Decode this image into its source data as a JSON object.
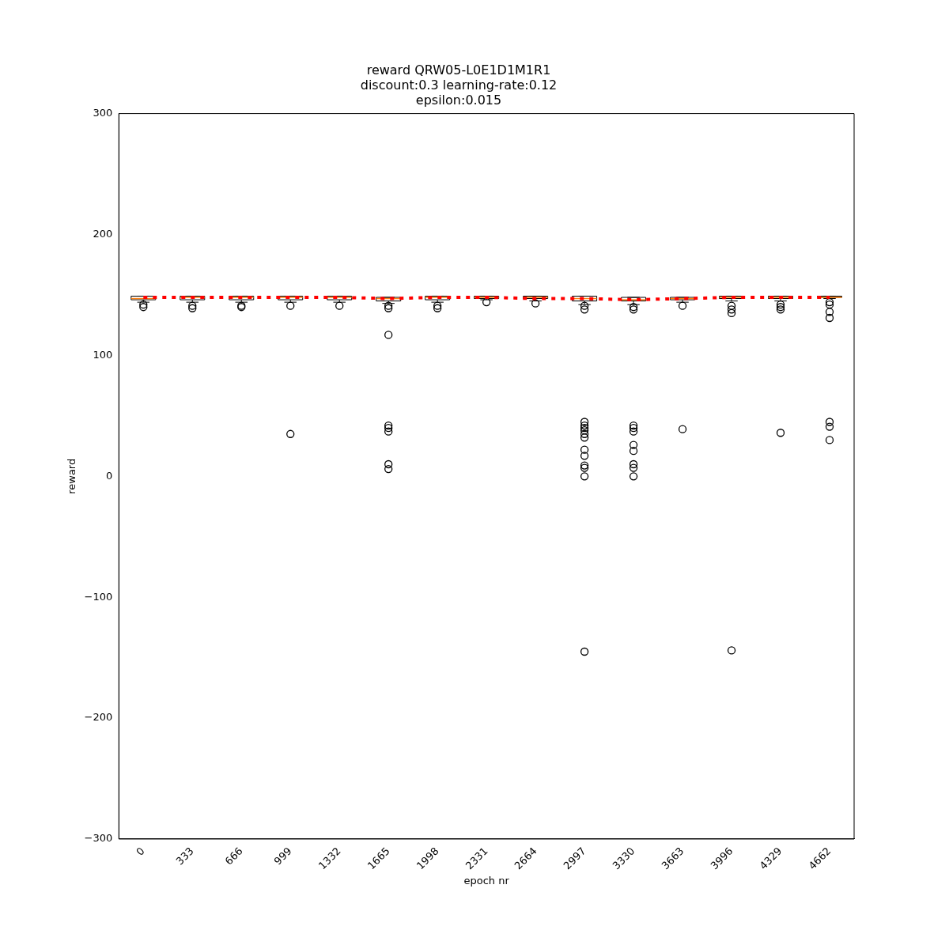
{
  "chart_data": {
    "type": "box",
    "title": "reward QRW05-L0E1D1M1R1\ndiscount:0.3 learning-rate:0.12\nepsilon:0.015",
    "xlabel": "epoch nr",
    "ylabel": "reward",
    "categories": [
      "0",
      "333",
      "666",
      "999",
      "1332",
      "1665",
      "1998",
      "2331",
      "2664",
      "2997",
      "3330",
      "3663",
      "3996",
      "4329",
      "4662"
    ],
    "boxes": [
      {
        "low": 144,
        "q1": 146,
        "median": 147,
        "q3": 149,
        "high": 149,
        "outliers": [
          142,
          140
        ]
      },
      {
        "low": 144,
        "q1": 146,
        "median": 148,
        "q3": 149,
        "high": 149,
        "outliers": [
          141,
          139
        ]
      },
      {
        "low": 144,
        "q1": 146,
        "median": 148,
        "q3": 149,
        "high": 149,
        "outliers": [
          141,
          140
        ]
      },
      {
        "low": 144,
        "q1": 146,
        "median": 148,
        "q3": 149,
        "high": 149,
        "outliers": [
          141,
          35
        ]
      },
      {
        "low": 144,
        "q1": 146,
        "median": 148,
        "q3": 149,
        "high": 149,
        "outliers": [
          141
        ]
      },
      {
        "low": 143,
        "q1": 145,
        "median": 147,
        "q3": 148,
        "high": 148,
        "outliers": [
          141,
          139,
          117,
          42,
          40,
          37,
          10,
          6
        ]
      },
      {
        "low": 144,
        "q1": 146,
        "median": 148,
        "q3": 149,
        "high": 149,
        "outliers": [
          141,
          139
        ]
      },
      {
        "low": 146,
        "q1": 147,
        "median": 148,
        "q3": 149,
        "high": 149,
        "outliers": [
          144
        ]
      },
      {
        "low": 145,
        "q1": 147,
        "median": 148,
        "q3": 149,
        "high": 149,
        "outliers": [
          143
        ]
      },
      {
        "low": 142,
        "q1": 145,
        "median": 147,
        "q3": 149,
        "high": 149,
        "outliers": [
          141,
          138,
          45,
          42,
          40,
          38,
          35,
          32,
          22,
          17,
          9,
          7,
          0,
          -145
        ]
      },
      {
        "low": 142,
        "q1": 145,
        "median": 146,
        "q3": 148,
        "high": 148,
        "outliers": [
          140,
          138,
          42,
          40,
          37,
          26,
          21,
          10,
          7,
          0
        ]
      },
      {
        "low": 144,
        "q1": 146,
        "median": 147,
        "q3": 148,
        "high": 148,
        "outliers": [
          141,
          39
        ]
      },
      {
        "low": 145,
        "q1": 147,
        "median": 148,
        "q3": 149,
        "high": 149,
        "outliers": [
          141,
          138,
          135,
          -144
        ]
      },
      {
        "low": 145,
        "q1": 147,
        "median": 148,
        "q3": 149,
        "high": 149,
        "outliers": [
          142,
          140,
          138,
          36
        ]
      },
      {
        "low": 147,
        "q1": 148,
        "median": 148,
        "q3": 149,
        "high": 149,
        "outliers": [
          144,
          142,
          136,
          131,
          45,
          41,
          30
        ]
      }
    ],
    "series": [
      {
        "type": "line",
        "color": "#ff0000",
        "line_style": "dotted",
        "marker": "none",
        "values": [
          148,
          148,
          148,
          148,
          148,
          147,
          148,
          148,
          147,
          147,
          146,
          147,
          148,
          148,
          148
        ]
      }
    ],
    "ylim": [
      -300,
      300
    ],
    "yticks": [
      -300,
      -200,
      -100,
      0,
      100,
      200,
      300
    ],
    "grid": false,
    "legend": false
  }
}
